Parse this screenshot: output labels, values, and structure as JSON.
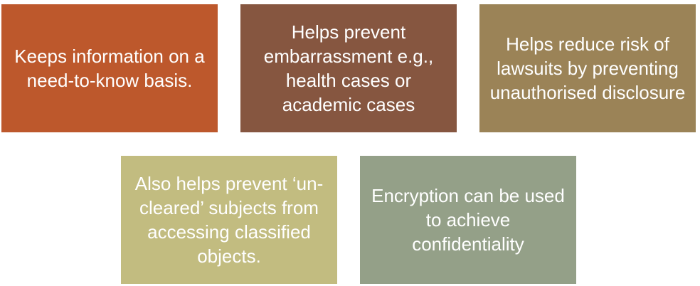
{
  "boxes": [
    {
      "text": "Keeps information on a need-to-know basis.",
      "color": "#bd582c"
    },
    {
      "text": "Helps prevent embarrassment e.g., health cases or academic cases",
      "color": "#865640"
    },
    {
      "text": "Helps reduce risk of lawsuits by preventing unauthorised disclosure",
      "color": "#9b8357"
    },
    {
      "text": "Also helps prevent ‘un-cleared’ subjects from accessing classified objects.",
      "color": "#c2bc80"
    },
    {
      "text": "Encryption can be used to achieve confidentiality",
      "color": "#94a088"
    }
  ]
}
